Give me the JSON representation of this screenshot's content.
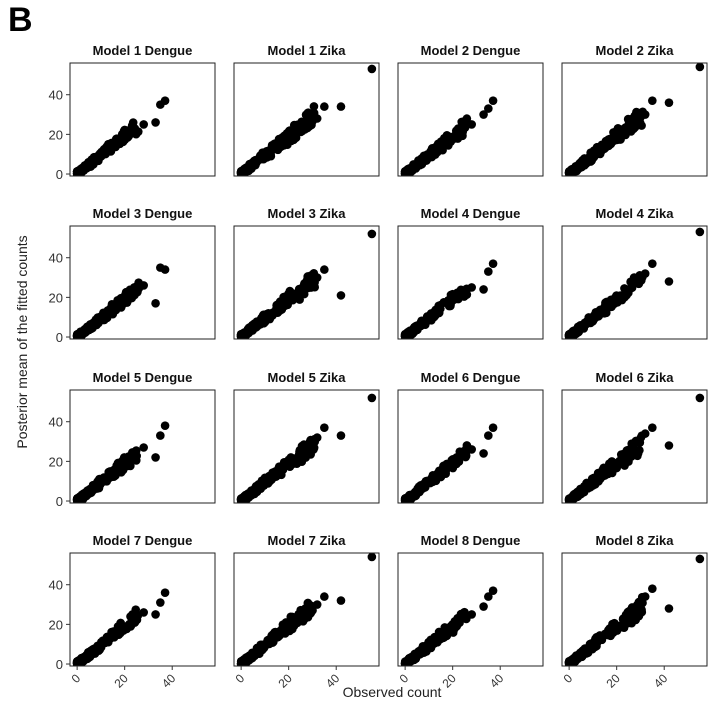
{
  "panel_label": "B",
  "chart_data": {
    "type": "scatter",
    "layout": "facet-grid",
    "rows": 4,
    "cols": 4,
    "xlabel": "Observed count",
    "ylabel": "Posterior mean of the fitted counts",
    "xlim": [
      -3,
      58
    ],
    "ylim": [
      -1,
      56
    ],
    "xticks": [
      0,
      20,
      40
    ],
    "yticks": [
      0,
      20,
      40
    ],
    "grid": false,
    "point_color": "#000000",
    "facets": [
      {
        "title": "Model 1 Dengue",
        "disease": "Dengue",
        "outliers": [
          [
            37,
            37
          ],
          [
            35,
            35
          ],
          [
            33,
            26
          ],
          [
            28,
            25
          ]
        ]
      },
      {
        "title": "Model 1 Zika",
        "disease": "Zika",
        "outliers": [
          [
            55,
            53
          ],
          [
            42,
            34
          ],
          [
            35,
            34
          ],
          [
            32,
            28
          ]
        ]
      },
      {
        "title": "Model 2 Dengue",
        "disease": "Dengue",
        "outliers": [
          [
            37,
            37
          ],
          [
            35,
            33
          ],
          [
            33,
            30
          ],
          [
            28,
            25
          ]
        ]
      },
      {
        "title": "Model 2 Zika",
        "disease": "Zika",
        "outliers": [
          [
            55,
            54
          ],
          [
            42,
            36
          ],
          [
            35,
            37
          ],
          [
            32,
            30
          ]
        ]
      },
      {
        "title": "Model 3 Dengue",
        "disease": "Dengue",
        "outliers": [
          [
            37,
            34
          ],
          [
            35,
            35
          ],
          [
            33,
            17
          ],
          [
            28,
            26
          ]
        ]
      },
      {
        "title": "Model 3 Zika",
        "disease": "Zika",
        "outliers": [
          [
            55,
            52
          ],
          [
            42,
            21
          ],
          [
            35,
            34
          ],
          [
            32,
            30
          ]
        ]
      },
      {
        "title": "Model 4 Dengue",
        "disease": "Dengue",
        "outliers": [
          [
            37,
            37
          ],
          [
            35,
            33
          ],
          [
            33,
            24
          ],
          [
            28,
            25
          ]
        ]
      },
      {
        "title": "Model 4 Zika",
        "disease": "Zika",
        "outliers": [
          [
            55,
            53
          ],
          [
            42,
            28
          ],
          [
            35,
            37
          ],
          [
            32,
            32
          ]
        ]
      },
      {
        "title": "Model 5 Dengue",
        "disease": "Dengue",
        "outliers": [
          [
            37,
            38
          ],
          [
            35,
            33
          ],
          [
            33,
            22
          ],
          [
            28,
            27
          ]
        ]
      },
      {
        "title": "Model 5 Zika",
        "disease": "Zika",
        "outliers": [
          [
            55,
            52
          ],
          [
            42,
            33
          ],
          [
            35,
            37
          ],
          [
            32,
            32
          ]
        ]
      },
      {
        "title": "Model 6 Dengue",
        "disease": "Dengue",
        "outliers": [
          [
            37,
            37
          ],
          [
            35,
            33
          ],
          [
            33,
            24
          ],
          [
            28,
            26
          ]
        ]
      },
      {
        "title": "Model 6 Zika",
        "disease": "Zika",
        "outliers": [
          [
            55,
            52
          ],
          [
            42,
            28
          ],
          [
            35,
            37
          ],
          [
            32,
            34
          ]
        ]
      },
      {
        "title": "Model 7 Dengue",
        "disease": "Dengue",
        "outliers": [
          [
            37,
            36
          ],
          [
            35,
            31
          ],
          [
            33,
            25
          ],
          [
            28,
            26
          ]
        ]
      },
      {
        "title": "Model 7 Zika",
        "disease": "Zika",
        "outliers": [
          [
            55,
            54
          ],
          [
            42,
            32
          ],
          [
            35,
            34
          ],
          [
            32,
            30
          ]
        ]
      },
      {
        "title": "Model 8 Dengue",
        "disease": "Dengue",
        "outliers": [
          [
            37,
            37
          ],
          [
            35,
            34
          ],
          [
            33,
            29
          ],
          [
            28,
            25
          ]
        ]
      },
      {
        "title": "Model 8 Zika",
        "disease": "Zika",
        "outliers": [
          [
            55,
            53
          ],
          [
            42,
            28
          ],
          [
            35,
            38
          ],
          [
            32,
            34
          ]
        ]
      }
    ]
  }
}
